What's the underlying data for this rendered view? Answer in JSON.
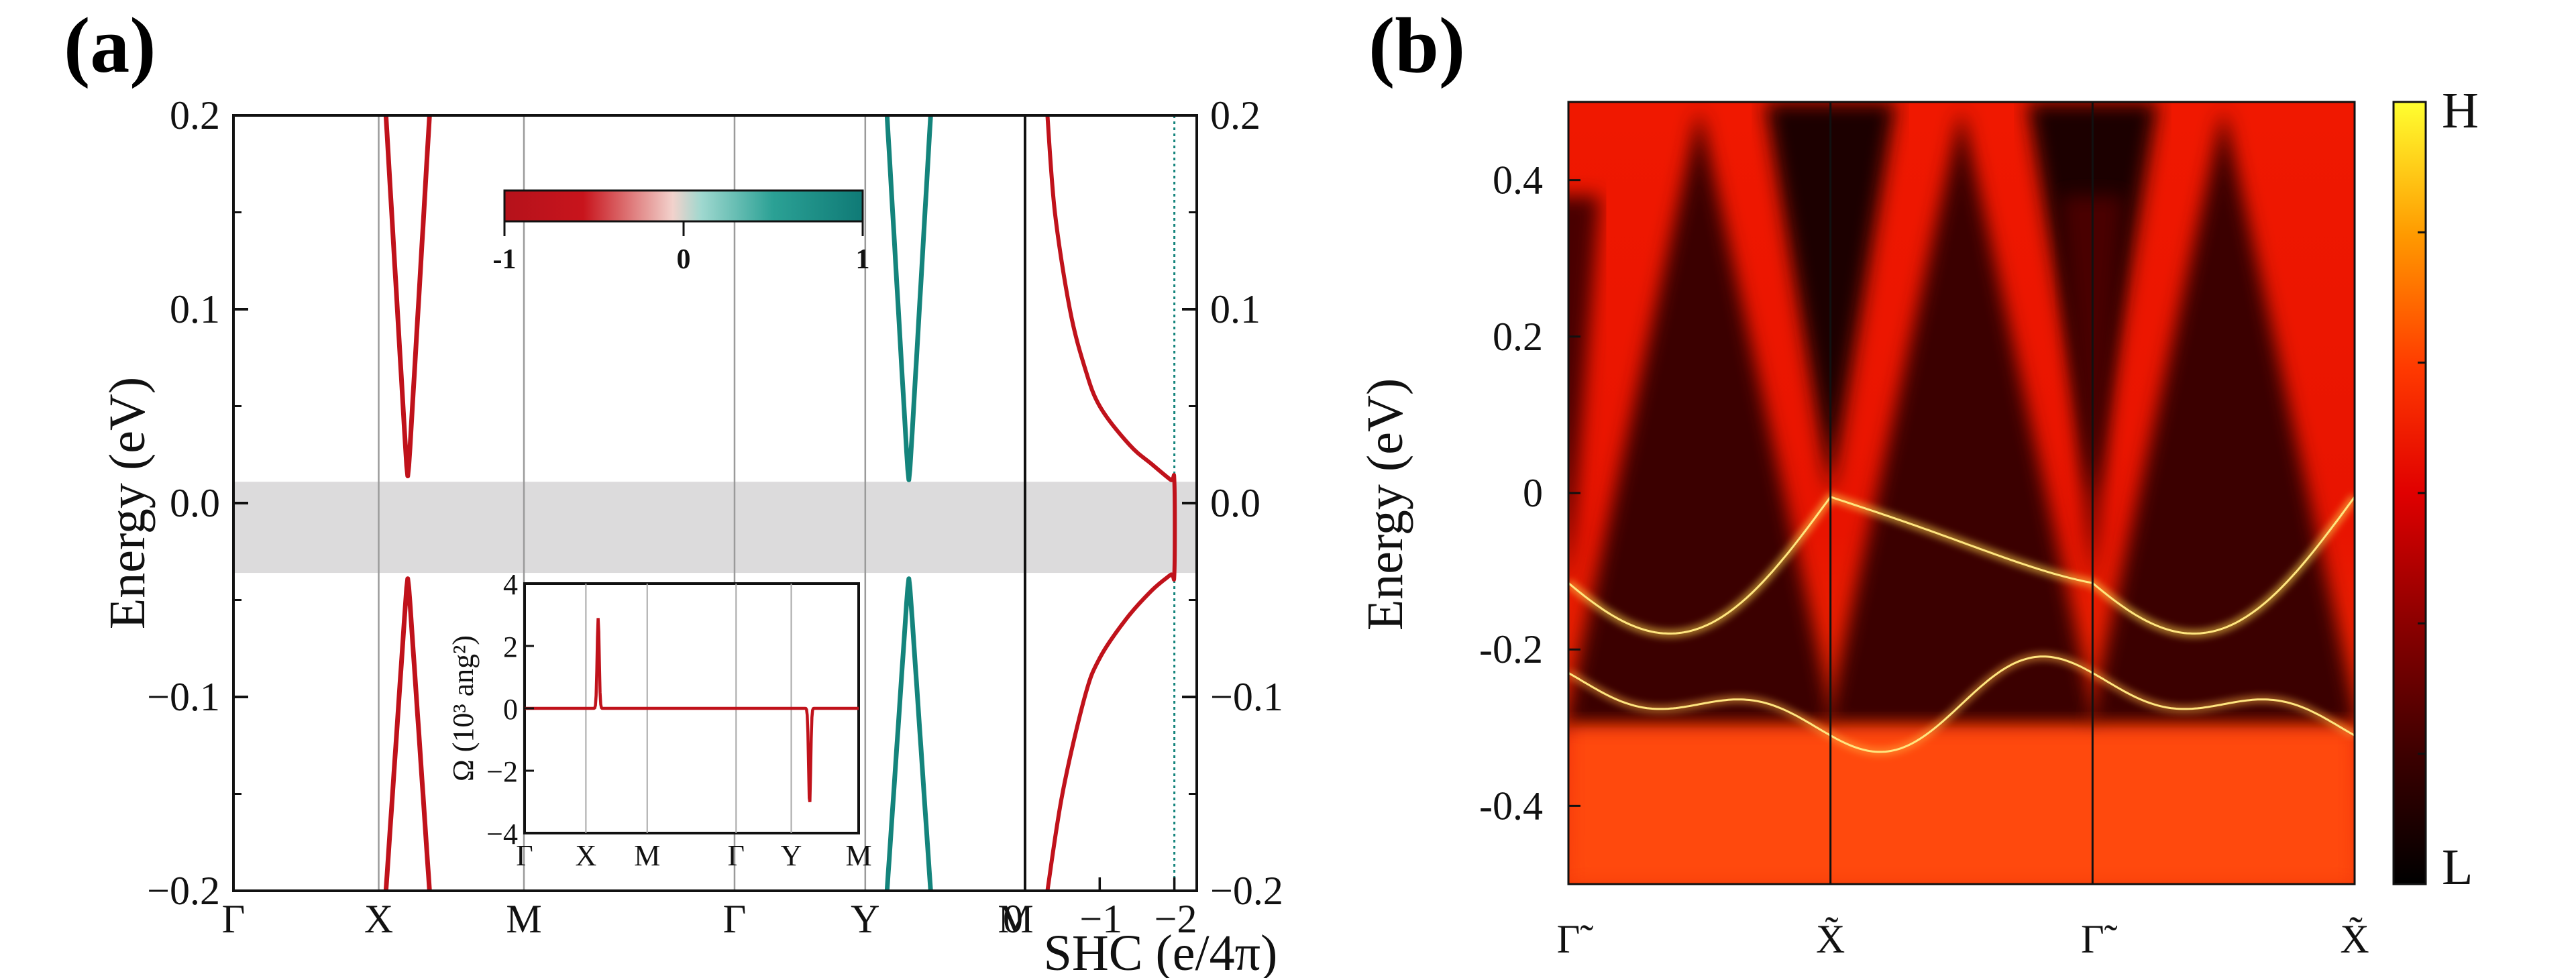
{
  "figure": {
    "label_a": "(a)",
    "label_b": "(b)"
  },
  "chart_data": [
    {
      "id": "band",
      "type": "line",
      "title": "",
      "ylabel": "Energy (eV)",
      "ylim": [
        -0.2,
        0.2
      ],
      "yticks": [
        0.2,
        0.1,
        0.0,
        -0.1,
        -0.2
      ],
      "ytick_labels": [
        "0.2",
        "0.1",
        "0.0",
        "−0.1",
        "−0.2"
      ],
      "right_ytick_labels": [
        "0.2",
        "0.1",
        "0.0",
        "−0.1",
        "−0.2"
      ],
      "kpath_labels": [
        "Γ",
        "X",
        "M",
        "Γ",
        "Y",
        "M"
      ],
      "kpath_positions": [
        0,
        1,
        2,
        3.45,
        4.35,
        5.45
      ],
      "gap_band": [
        -0.036,
        0.011
      ],
      "bands": [
        {
          "name": "cone-X-upper",
          "color": "#c0121b",
          "x": [
            1.05,
            1.2,
            1.35
          ],
          "y": [
            0.2,
            0.014,
            0.2
          ]
        },
        {
          "name": "cone-X-lower",
          "color": "#c0121b",
          "x": [
            1.05,
            1.2,
            1.35
          ],
          "y": [
            -0.2,
            -0.039,
            -0.2
          ]
        },
        {
          "name": "cone-Y-upper",
          "color": "#14847c",
          "x": [
            4.5,
            4.65,
            4.8
          ],
          "y": [
            0.2,
            0.012,
            0.2
          ]
        },
        {
          "name": "cone-Y-lower",
          "color": "#14847c",
          "x": [
            4.5,
            4.65,
            4.8
          ],
          "y": [
            -0.2,
            -0.039,
            -0.2
          ]
        }
      ],
      "spin_colorbar": {
        "ticks": [
          "-1",
          "0",
          "1"
        ],
        "colors": [
          "#b5121b",
          "#f2d2cc",
          "#9fd8cf",
          "#0f7a76"
        ]
      }
    },
    {
      "id": "shc",
      "type": "line",
      "xlabel": "SHC (e/4π)",
      "xlim": [
        0,
        -2.3
      ],
      "xticks": [
        0,
        -1,
        -2
      ],
      "xtick_labels": [
        "0",
        "−1",
        "−2"
      ],
      "reference_line": -2,
      "y": [
        0.2,
        0.15,
        0.1,
        0.07,
        0.05,
        0.03,
        0.02,
        0.012,
        0.011,
        -0.036,
        -0.037,
        -0.045,
        -0.06,
        -0.08,
        -0.1,
        -0.15,
        -0.2
      ],
      "x": [
        -0.3,
        -0.4,
        -0.6,
        -0.8,
        -1.0,
        -1.4,
        -1.7,
        -1.95,
        -2.0,
        -2.0,
        -1.95,
        -1.7,
        -1.35,
        -1.0,
        -0.8,
        -0.5,
        -0.3
      ]
    },
    {
      "id": "berry_inset",
      "type": "line",
      "ylabel": "Ω (10³ ang²)",
      "ylim": [
        -4,
        4
      ],
      "yticks": [
        4,
        2,
        0,
        -2,
        -4
      ],
      "ytick_labels": [
        "4",
        "2",
        "0",
        "−2",
        "−4"
      ],
      "kpath_labels": [
        "Γ",
        "X",
        "M",
        "Γ",
        "Y",
        "M"
      ],
      "peaks": [
        {
          "k": "X",
          "value": 2.9
        },
        {
          "k": "Y",
          "value": -3.1
        }
      ]
    },
    {
      "id": "surface_states",
      "type": "heatmap",
      "ylabel": "Energy (eV)",
      "ylim": [
        -0.5,
        0.5
      ],
      "yticks": [
        0.4,
        0.2,
        0,
        -0.2,
        -0.4
      ],
      "ytick_labels": [
        "0.4",
        "0.2",
        "0",
        "-0.2",
        "-0.4"
      ],
      "kpath_labels": [
        "Γ̃",
        "X̃",
        "Γ̃",
        "X̃"
      ],
      "colorbar": {
        "high": "H",
        "low": "L",
        "colors": [
          "#000000",
          "#5a0000",
          "#b30000",
          "#ff1a00",
          "#ff7a00",
          "#ffd000",
          "#ffff30"
        ]
      }
    }
  ]
}
